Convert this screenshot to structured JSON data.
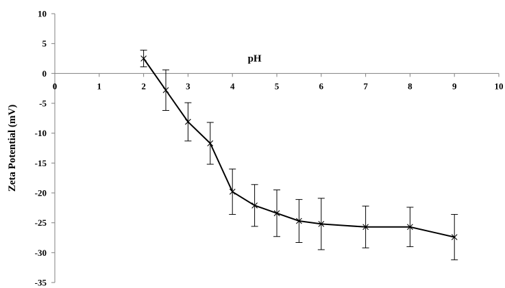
{
  "chart_data": {
    "type": "line",
    "xlabel": "pH",
    "ylabel": "Zeta Potential (mV)",
    "xlim": [
      0,
      10
    ],
    "ylim": [
      -35,
      10
    ],
    "x_ticks": [
      0,
      1,
      2,
      3,
      4,
      5,
      6,
      7,
      8,
      9,
      10
    ],
    "y_ticks": [
      10,
      5,
      0,
      -5,
      -10,
      -15,
      -20,
      -25,
      -30,
      -35
    ],
    "grid": false,
    "legend": "none",
    "series": [
      {
        "x": [
          2,
          2.5,
          3,
          3.5,
          4,
          4.5,
          5,
          5.5,
          6,
          7,
          8,
          9
        ],
        "y": [
          2.5,
          -2.8,
          -8.1,
          -11.7,
          -19.8,
          -22.1,
          -23.4,
          -24.7,
          -25.2,
          -25.7,
          -25.7,
          -27.4
        ],
        "err": [
          1.4,
          3.4,
          3.2,
          3.5,
          3.8,
          3.5,
          3.9,
          3.6,
          4.3,
          3.5,
          3.3,
          3.8
        ]
      }
    ]
  }
}
